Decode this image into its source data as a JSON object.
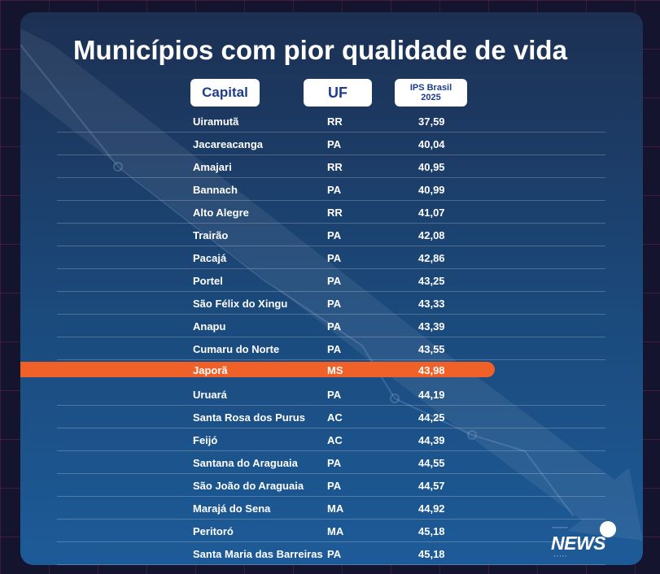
{
  "title": "Municípios com pior qualidade de vida",
  "headers": {
    "capital": "Capital",
    "uf": "UF",
    "ips_line1": "IPS Brasil",
    "ips_line2": "2025"
  },
  "highlight_color": "#ef6128",
  "highlight_row_index": 11,
  "rows": [
    {
      "name": "Uiramutã",
      "uf": "RR",
      "ips": "37,59"
    },
    {
      "name": "Jacareacanga",
      "uf": "PA",
      "ips": "40,04"
    },
    {
      "name": "Amajari",
      "uf": "RR",
      "ips": "40,95"
    },
    {
      "name": "Bannach",
      "uf": "PA",
      "ips": "40,99"
    },
    {
      "name": "Alto Alegre",
      "uf": "RR",
      "ips": "41,07"
    },
    {
      "name": "Trairão",
      "uf": "PA",
      "ips": "42,08"
    },
    {
      "name": "Pacajá",
      "uf": "PA",
      "ips": "42,86"
    },
    {
      "name": "Portel",
      "uf": "PA",
      "ips": "43,25"
    },
    {
      "name": "São Félix do Xingu",
      "uf": "PA",
      "ips": "43,33"
    },
    {
      "name": "Anapu",
      "uf": "PA",
      "ips": "43,39"
    },
    {
      "name": "Cumaru do Norte",
      "uf": "PA",
      "ips": "43,55"
    },
    {
      "name": "Japorã",
      "uf": "MS",
      "ips": "43,98"
    },
    {
      "name": "Uruará",
      "uf": "PA",
      "ips": "44,19"
    },
    {
      "name": "Santa Rosa dos Purus",
      "uf": "AC",
      "ips": "44,25"
    },
    {
      "name": "Feijó",
      "uf": "AC",
      "ips": "44,39"
    },
    {
      "name": "Santana do Araguaia",
      "uf": "PA",
      "ips": "44,55"
    },
    {
      "name": "São João do Araguaia",
      "uf": "PA",
      "ips": "44,57"
    },
    {
      "name": "Marajá do Sena",
      "uf": "MA",
      "ips": "44,92"
    },
    {
      "name": "Peritoró",
      "uf": "MA",
      "ips": "45,18"
    },
    {
      "name": "Santa Maria das Barreiras",
      "uf": "PA",
      "ips": "45,18"
    }
  ],
  "logo": {
    "word": "NEWS",
    "icon": "circle-dot-icon"
  }
}
